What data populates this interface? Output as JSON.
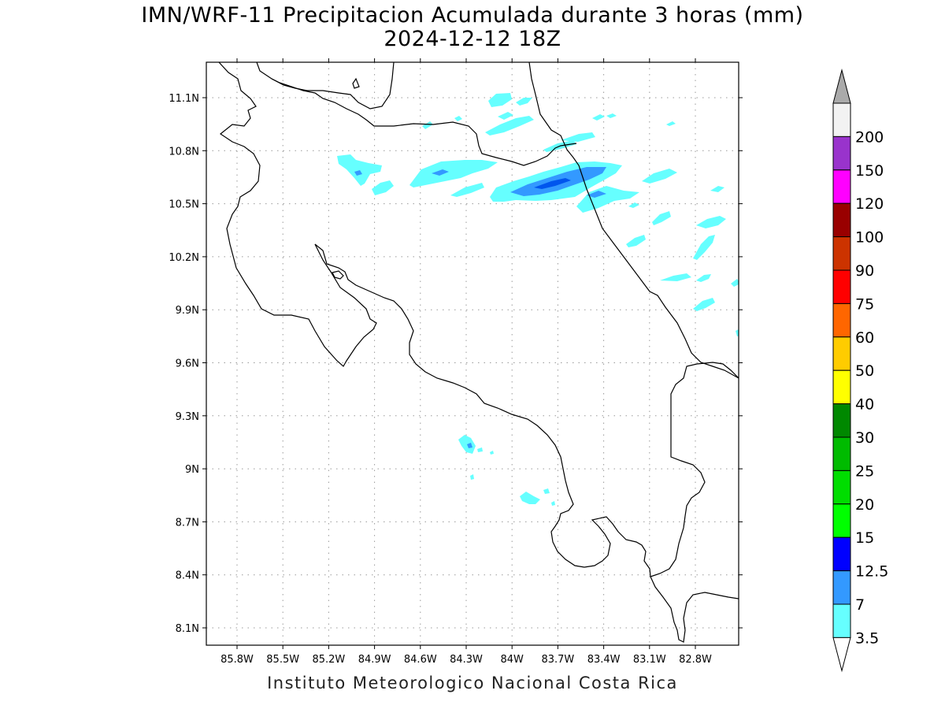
{
  "title": {
    "line1": "IMN/WRF-11 Precipitacion Acumulada durante 3 horas (mm)",
    "line2": "2024-12-12 18Z"
  },
  "footer": "Instituto Meteorologico Nacional Costa Rica",
  "axes": {
    "x_ticks": [
      "85.8W",
      "85.5W",
      "85.2W",
      "84.9W",
      "84.6W",
      "84.3W",
      "84W",
      "83.7W",
      "83.4W",
      "83.1W",
      "82.8W"
    ],
    "y_ticks": [
      "11.1N",
      "10.8N",
      "10.5N",
      "10.2N",
      "9.9N",
      "9.6N",
      "9.3N",
      "9N",
      "8.7N",
      "8.4N",
      "8.1N"
    ],
    "grid": "dotted"
  },
  "colorbar": {
    "levels": [
      {
        "label": "3.5",
        "color": "#66ffff"
      },
      {
        "label": "7",
        "color": "#3399ff"
      },
      {
        "label": "12.5",
        "color": "#0000ff"
      },
      {
        "label": "15",
        "color": "#00ff00"
      },
      {
        "label": "20",
        "color": "#00dd00"
      },
      {
        "label": "25",
        "color": "#00bb00"
      },
      {
        "label": "30",
        "color": "#008800"
      },
      {
        "label": "40",
        "color": "#ffff00"
      },
      {
        "label": "50",
        "color": "#ffcc00"
      },
      {
        "label": "60",
        "color": "#ff6600"
      },
      {
        "label": "75",
        "color": "#ff0000"
      },
      {
        "label": "90",
        "color": "#cc3300"
      },
      {
        "label": "100",
        "color": "#990000"
      },
      {
        "label": "120",
        "color": "#ff00ff"
      },
      {
        "label": "150",
        "color": "#9933cc"
      },
      {
        "label": "200",
        "color": "#f2f2f2"
      }
    ],
    "top_arrow_color": "#aaaaaa",
    "bottom_arrow_color": "#ffffff"
  },
  "colors": {
    "coast": "#000000",
    "grid": "#999999",
    "light_precip": "#66ffff",
    "moderate_precip": "#3399ff",
    "heavy_precip": "#0055ee"
  }
}
